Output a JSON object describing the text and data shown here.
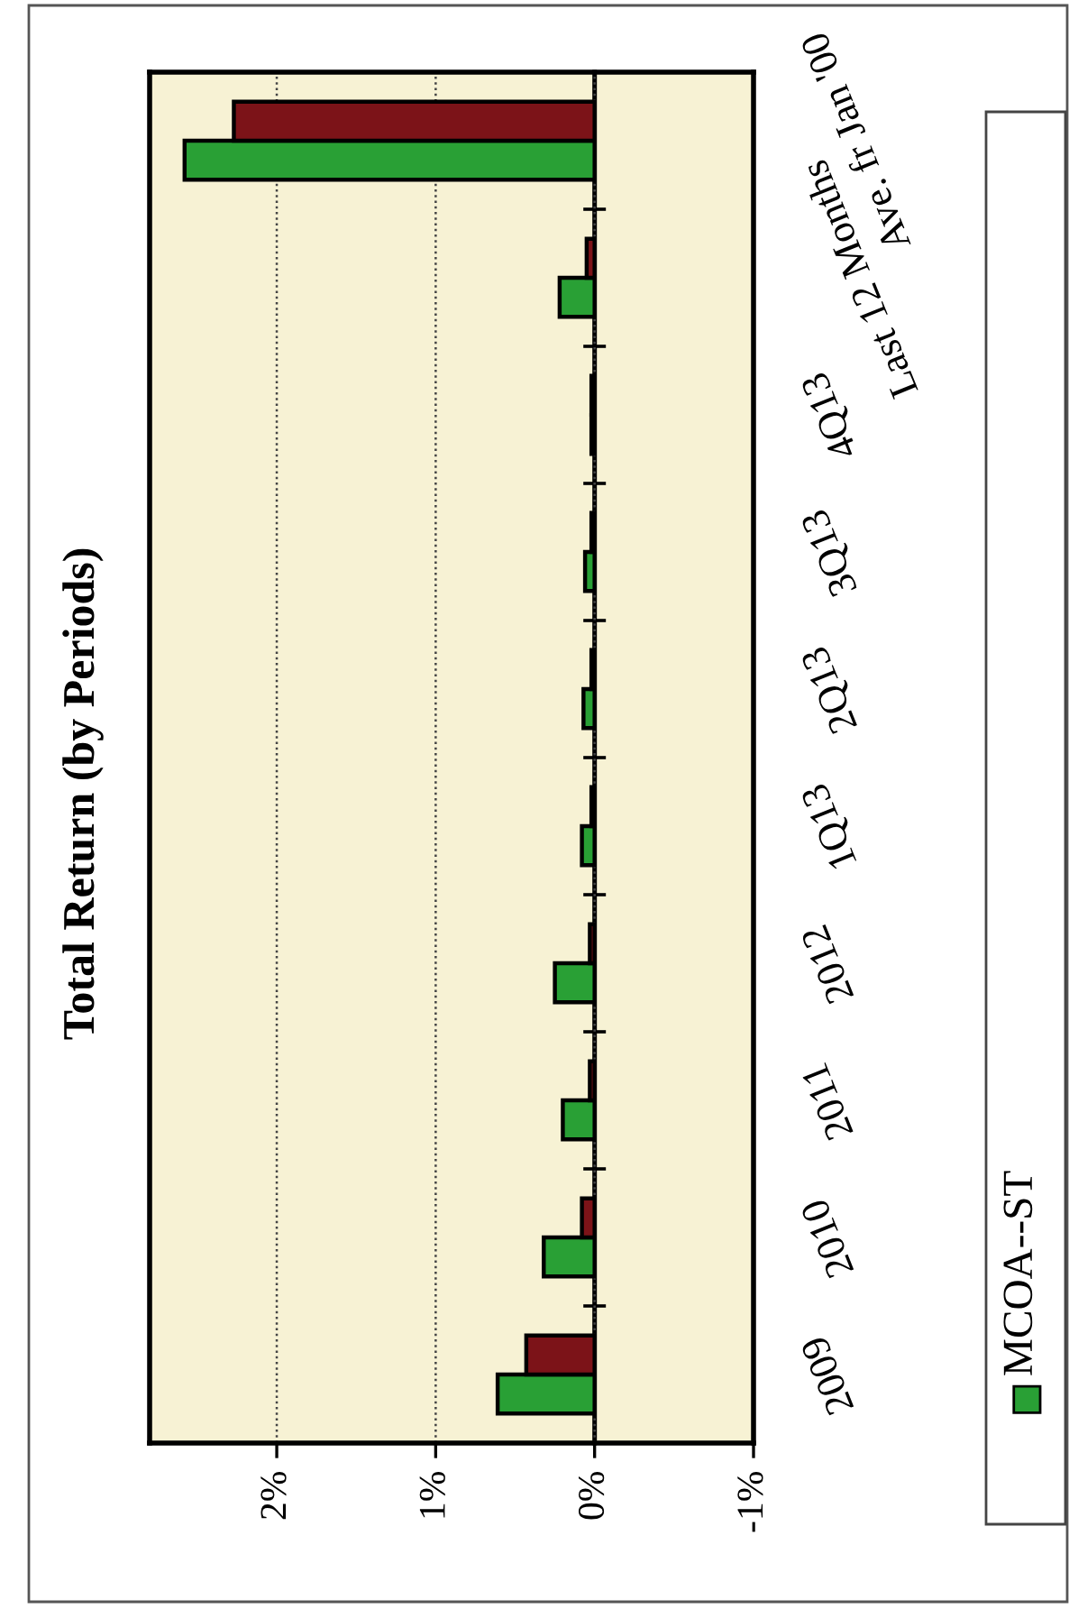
{
  "chart_data": {
    "type": "bar",
    "orientation": "horizontal",
    "title": "Total Return (by Periods)",
    "categories": [
      "Ave. fr Jan '00",
      "Last 12 Months",
      "4Q13",
      "3Q13",
      "2Q13",
      "1Q13",
      "2012",
      "2011",
      "2010",
      "2009"
    ],
    "series": [
      {
        "name": "MCOA--ST",
        "color": "#29a035",
        "values": [
          2.58,
          0.22,
          0.02,
          0.06,
          0.07,
          0.08,
          0.25,
          0.2,
          0.32,
          0.61
        ]
      },
      {
        "color": "#7c1318",
        "values": [
          2.27,
          0.05,
          0.02,
          0.02,
          0.02,
          0.02,
          0.03,
          0.03,
          0.08,
          0.43
        ]
      }
    ],
    "xlim": [
      2.8,
      -1
    ],
    "xticks": [
      {
        "value": 2,
        "label": "2%"
      },
      {
        "value": 1,
        "label": "1%"
      },
      {
        "value": 0,
        "label": "0%"
      },
      {
        "value": -1,
        "label": "-1%"
      }
    ],
    "grid": "x",
    "legend": "right"
  }
}
